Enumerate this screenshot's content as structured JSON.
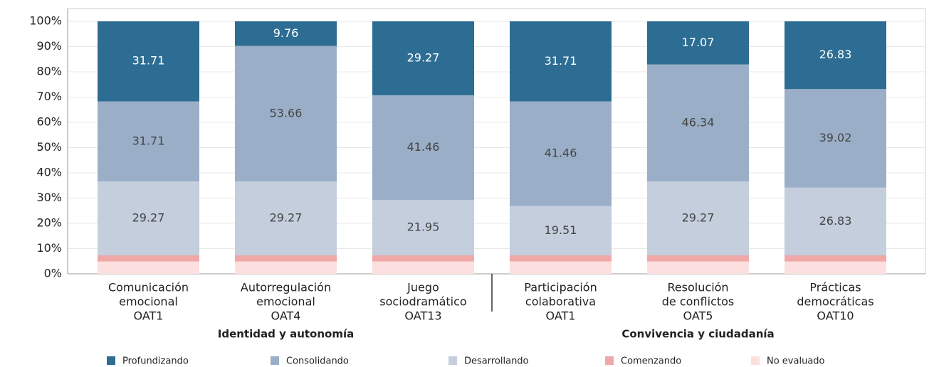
{
  "chart_data": {
    "type": "stacked_bar",
    "categories": [
      [
        "Comunicación",
        "emocional",
        "OAT1"
      ],
      [
        "Autorregulación",
        "emocional",
        "OAT4"
      ],
      [
        "Juego",
        "sociodramático",
        "OAT13"
      ],
      [
        "Participación",
        "colaborativa",
        "OAT1"
      ],
      [
        "Resolución",
        "de conflictos",
        "OAT5"
      ],
      [
        "Prácticas",
        "democráticas",
        "OAT10"
      ]
    ],
    "groups": [
      {
        "label": "Identidad y autonomía",
        "span": [
          0,
          2
        ]
      },
      {
        "label": "Convivencia y ciudadanía",
        "span": [
          3,
          5
        ]
      }
    ],
    "series": [
      {
        "name": "No evaluado",
        "color": "#fbe0df",
        "values": [
          4.88,
          4.88,
          4.88,
          4.88,
          4.88,
          4.88
        ]
      },
      {
        "name": "Comenzando",
        "color": "#f0a7a8",
        "values": [
          2.44,
          2.44,
          2.44,
          2.44,
          2.44,
          2.44
        ]
      },
      {
        "name": "Desarrollando",
        "color": "#c4cedd",
        "values": [
          29.27,
          29.27,
          21.95,
          19.51,
          29.27,
          26.83
        ],
        "labels_shown": true
      },
      {
        "name": "Consolidando",
        "color": "#9aafc7",
        "values": [
          31.71,
          53.66,
          41.46,
          41.46,
          46.34,
          39.02
        ],
        "labels_shown": true
      },
      {
        "name": "Profundizando",
        "color": "#2d6d93",
        "values": [
          31.71,
          9.76,
          29.27,
          31.71,
          17.07,
          26.83
        ],
        "labels_shown": true
      }
    ],
    "legend_order": [
      4,
      3,
      2,
      1,
      0
    ],
    "ylim": [
      0,
      100
    ],
    "yticks": [
      {
        "value": 0,
        "label": "0%"
      },
      {
        "value": 10,
        "label": "10%"
      },
      {
        "value": 20,
        "label": "20%"
      },
      {
        "value": 30,
        "label": "30%"
      },
      {
        "value": 40,
        "label": "40%"
      },
      {
        "value": 50,
        "label": "50%"
      },
      {
        "value": 60,
        "label": "60%"
      },
      {
        "value": 70,
        "label": "70%"
      },
      {
        "value": 80,
        "label": "80%"
      },
      {
        "value": 90,
        "label": "90%"
      },
      {
        "value": 100,
        "label": "100%"
      }
    ],
    "grid": true
  }
}
